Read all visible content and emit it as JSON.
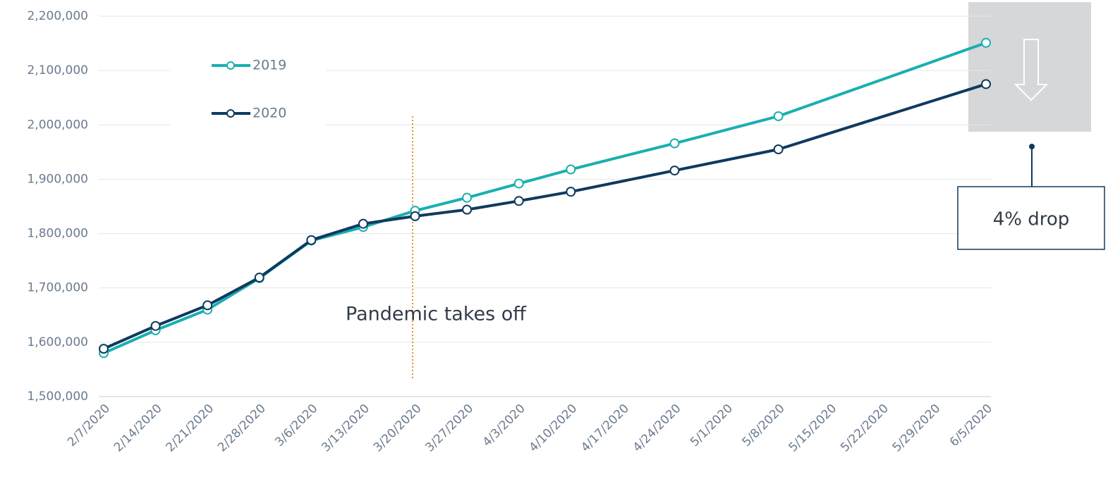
{
  "chart_data": {
    "type": "line",
    "categories": [
      "2/7/2020",
      "2/14/2020",
      "2/21/2020",
      "2/28/2020",
      "3/6/2020",
      "3/13/2020",
      "3/20/2020",
      "3/27/2020",
      "4/3/2020",
      "4/10/2020",
      "4/17/2020",
      "4/24/2020",
      "5/1/2020",
      "5/8/2020",
      "5/15/2020",
      "5/22/2020",
      "5/29/2020",
      "6/5/2020"
    ],
    "series": [
      {
        "name": "2019",
        "color": "#1aafb0",
        "x": [
          "2/7/2020",
          "2/14/2020",
          "2/21/2020",
          "2/28/2020",
          "3/6/2020",
          "3/13/2020",
          "3/20/2020",
          "3/27/2020",
          "4/3/2020",
          "4/10/2020",
          "4/24/2020",
          "5/8/2020",
          "6/5/2020"
        ],
        "values": [
          1580000,
          1622000,
          1660000,
          1718000,
          1787000,
          1812000,
          1842000,
          1866000,
          1892000,
          1918000,
          1966000,
          2016000,
          2151000
        ]
      },
      {
        "name": "2020",
        "color": "#0e3a5f",
        "x": [
          "2/7/2020",
          "2/14/2020",
          "2/21/2020",
          "2/28/2020",
          "3/6/2020",
          "3/13/2020",
          "3/20/2020",
          "3/27/2020",
          "4/3/2020",
          "4/10/2020",
          "4/24/2020",
          "5/8/2020",
          "6/5/2020"
        ],
        "values": [
          1588000,
          1630000,
          1668000,
          1719000,
          1788000,
          1818000,
          1832000,
          1844000,
          1860000,
          1877000,
          1916000,
          1955000,
          2075000
        ]
      }
    ],
    "ylim": [
      1500000,
      2200000
    ],
    "yticks": [
      {
        "value": 1500000,
        "label": "1,500,000"
      },
      {
        "value": 1600000,
        "label": "1,600,000"
      },
      {
        "value": 1700000,
        "label": "1,700,000"
      },
      {
        "value": 1800000,
        "label": "1,800,000"
      },
      {
        "value": 1900000,
        "label": "1,900,000"
      },
      {
        "value": 2000000,
        "label": "2,000,000"
      },
      {
        "value": 2100000,
        "label": "2,100,000"
      },
      {
        "value": 2200000,
        "label": "2,200,000"
      }
    ],
    "grid": true,
    "annotations": [
      "Pandemic takes off",
      "4% drop"
    ]
  }
}
